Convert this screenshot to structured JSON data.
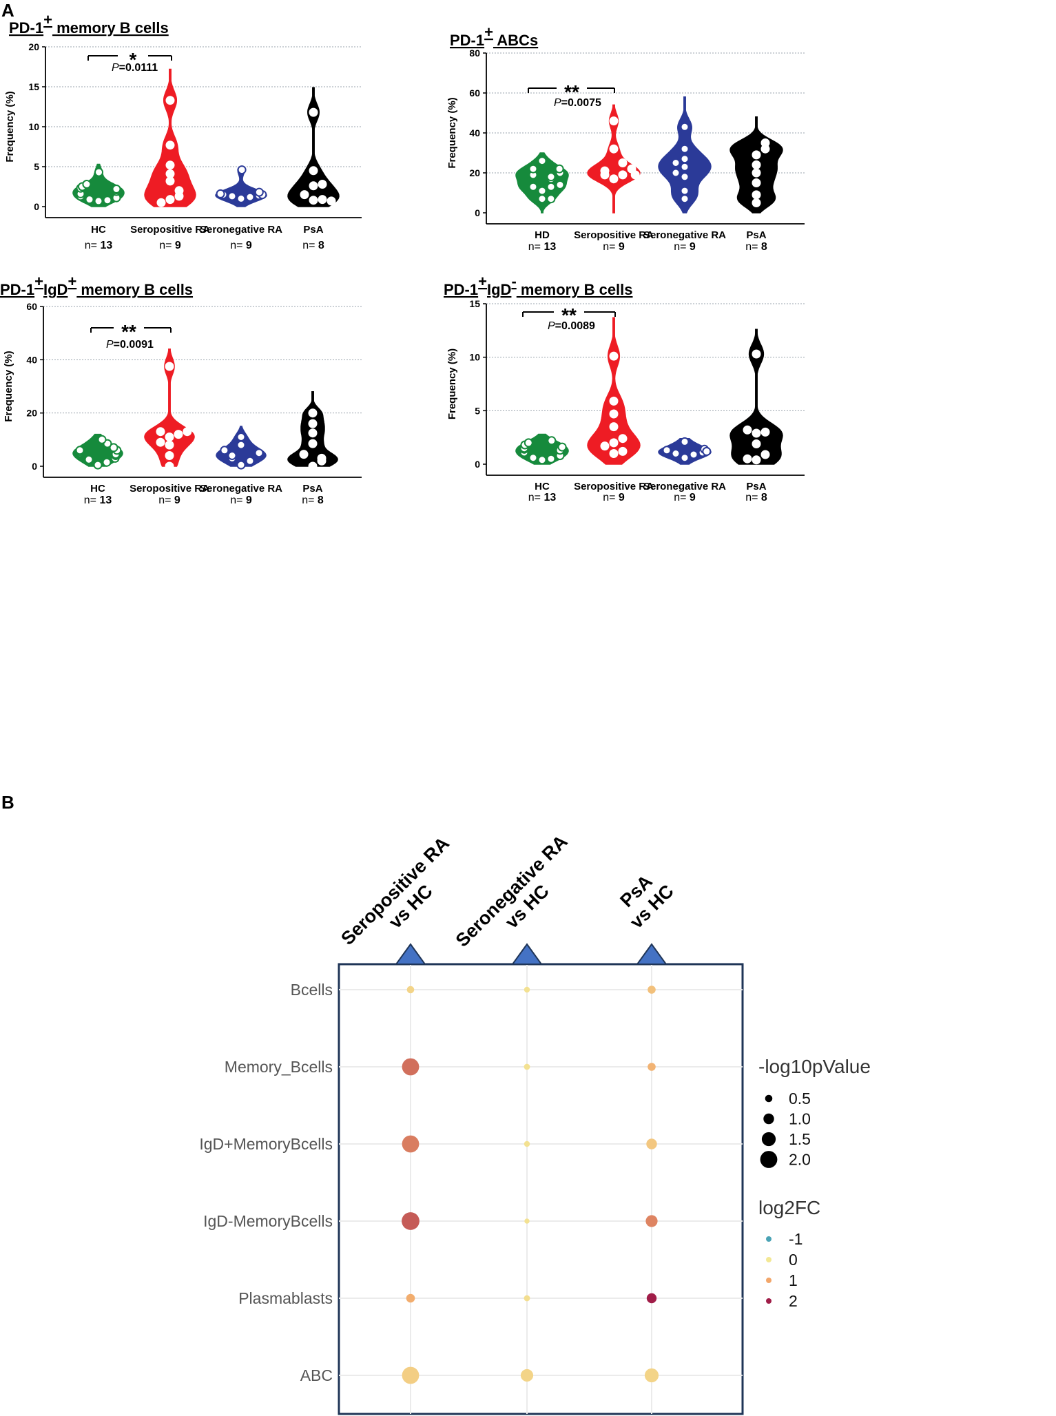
{
  "figure": {
    "panel_a_label": "A",
    "panel_b_label": "B"
  },
  "colors": {
    "HC": "#168a3c",
    "SeropositiveRA": "#ee1c24",
    "SeronegativeRA": "#2b3a98",
    "PsA": "#000000",
    "grid": "#9aa3ad",
    "dot_frame": "#1f3557",
    "triangle": "#4472c4"
  },
  "chart_data": [
    {
      "type": "violin",
      "title_pre": "PD-1",
      "title_sup": "+",
      "title_post": " memory B cells",
      "ylabel": "Frequency (%)",
      "ylim": [
        0,
        20
      ],
      "yticks": [
        "0",
        "5",
        "10",
        "15",
        "20"
      ],
      "groups": [
        {
          "label": "HC",
          "n_label": "n=",
          "n": "13",
          "key": "HC",
          "max": 5.3,
          "values": [
            0.7,
            0.8,
            0.9,
            1.1,
            1.3,
            1.6,
            1.9,
            2.1,
            2.2,
            2.3,
            2.5,
            2.8,
            4.3
          ]
        },
        {
          "label": "Seropositive RA",
          "n_label": "n=",
          "n": "9",
          "key": "SeropositiveRA",
          "max": 17.2,
          "values": [
            0.9,
            1.3,
            2.0,
            3.2,
            4.1,
            5.2,
            7.7,
            13.3,
            0.5
          ]
        },
        {
          "label": "Seronegative RA",
          "n_label": "n=",
          "n": "9",
          "key": "SeronegativeRA",
          "max": 4.7,
          "values": [
            1.0,
            1.2,
            1.3,
            1.4,
            1.5,
            1.5,
            1.6,
            4.6,
            1.8
          ]
        },
        {
          "label": "PsA",
          "n_label": "n=",
          "n": "8",
          "key": "PsA",
          "max": 14.9,
          "values": [
            0.8,
            0.9,
            1.5,
            2.6,
            2.8,
            4.5,
            11.8,
            0.7
          ]
        }
      ],
      "significance": [
        {
          "from": 0,
          "to": 1,
          "stars": "*",
          "p_label": "P",
          "p_value": "=0.0111"
        }
      ]
    },
    {
      "type": "violin",
      "title_pre": "PD-1",
      "title_sup": "+",
      "title_post": " ABCs",
      "ylabel": "Frequency (%)",
      "ylim": [
        0,
        80
      ],
      "yticks": [
        "0",
        "20",
        "40",
        "60",
        "80"
      ],
      "groups": [
        {
          "label": "HD",
          "n_label": "n=",
          "n": "13",
          "key": "HC",
          "max": 30,
          "values": [
            7,
            7,
            11,
            13,
            13,
            14,
            17,
            18,
            19,
            20,
            22,
            22,
            26
          ]
        },
        {
          "label": "Seropositive RA",
          "n_label": "n=",
          "n": "9",
          "key": "SeropositiveRA",
          "max": 54,
          "values": [
            17,
            19,
            19,
            21,
            22,
            25,
            32,
            46,
            19
          ]
        },
        {
          "label": "Seronegative RA",
          "n_label": "n=",
          "n": "9",
          "key": "SeronegativeRA",
          "max": 58,
          "values": [
            7,
            11,
            18,
            23,
            27,
            32,
            43,
            20,
            25
          ]
        },
        {
          "label": "PsA",
          "n_label": "n=",
          "n": "8",
          "key": "PsA",
          "max": 48,
          "values": [
            5,
            9,
            15,
            20,
            24,
            29,
            32,
            35
          ]
        }
      ],
      "significance": [
        {
          "from": 0,
          "to": 1,
          "stars": "**",
          "p_label": "P",
          "p_value": "=0.0075"
        }
      ]
    },
    {
      "type": "violin",
      "title_pre": "PD-1",
      "title_sup": "+",
      "title_mid": "IgD",
      "title_sup2": "+",
      "title_post": " memory B cells",
      "ylabel": "Frequency (%)",
      "ylim": [
        0,
        60
      ],
      "yticks": [
        "0",
        "20",
        "40",
        "60"
      ],
      "groups": [
        {
          "label": "HC",
          "n_label": "n=",
          "n": "13",
          "key": "HC",
          "max": 12,
          "values": [
            0.5,
            1.5,
            2.5,
            3,
            4,
            4.5,
            5,
            5.5,
            6,
            6,
            7,
            8.5,
            10
          ]
        },
        {
          "label": "Seropositive RA",
          "n_label": "n=",
          "n": "9",
          "key": "SeropositiveRA",
          "max": 44,
          "values": [
            0,
            4,
            8,
            11,
            12,
            13,
            13,
            37.5,
            9
          ]
        },
        {
          "label": "Seronegative RA",
          "n_label": "n=",
          "n": "9",
          "key": "SeronegativeRA",
          "max": 15,
          "values": [
            0.5,
            2,
            3,
            4,
            4.5,
            5,
            8,
            11,
            6
          ]
        },
        {
          "label": "PsA",
          "n_label": "n=",
          "n": "8",
          "key": "PsA",
          "max": 28,
          "values": [
            0,
            2,
            3,
            4.5,
            8.5,
            12.5,
            16,
            20
          ]
        }
      ],
      "significance": [
        {
          "from": 0,
          "to": 1,
          "stars": "**",
          "p_label": "P",
          "p_value": "=0.0091"
        }
      ]
    },
    {
      "type": "violin",
      "title_pre": "PD-1",
      "title_sup": "+",
      "title_mid": "IgD",
      "title_sup2": "-",
      "title_post": " memory B cells",
      "ylabel": "Frequency (%)",
      "ylim": [
        0,
        15
      ],
      "yticks": [
        "0",
        "5",
        "10",
        "15"
      ],
      "groups": [
        {
          "label": "HC",
          "n_label": "n=",
          "n": "13",
          "key": "HC",
          "max": 2.8,
          "values": [
            0.4,
            0.5,
            0.6,
            0.8,
            1.0,
            1.1,
            1.3,
            1.4,
            1.5,
            1.6,
            1.8,
            2.0,
            2.2
          ]
        },
        {
          "label": "Seropositive RA",
          "n_label": "n=",
          "n": "9",
          "key": "SeropositiveRA",
          "max": 13.7,
          "values": [
            1.0,
            1.2,
            2.0,
            2.4,
            3.5,
            4.7,
            5.9,
            10.1,
            1.7
          ]
        },
        {
          "label": "Seronegative RA",
          "n_label": "n=",
          "n": "9",
          "key": "SeronegativeRA",
          "max": 2.4,
          "values": [
            0.6,
            0.9,
            1.0,
            1.1,
            1.2,
            1.3,
            1.4,
            2.1,
            1.2
          ]
        },
        {
          "label": "PsA",
          "n_label": "n=",
          "n": "8",
          "key": "PsA",
          "max": 12.6,
          "values": [
            0.4,
            0.9,
            1.9,
            2.9,
            3.0,
            3.2,
            10.3,
            0.5
          ]
        }
      ],
      "significance": [
        {
          "from": 0,
          "to": 1,
          "stars": "**",
          "p_label": "P",
          "p_value": "=0.0089"
        }
      ]
    },
    {
      "type": "dotplot",
      "columns": [
        {
          "line1": "Seropositive RA",
          "line2": "vs HC"
        },
        {
          "line1": "Seronegative RA",
          "line2": "vs HC"
        },
        {
          "line1": "PsA",
          "line2": "vs HC"
        }
      ],
      "rows": [
        "Bcells",
        "Memory_Bcells",
        "IgD+MemoryBcells",
        "IgD-MemoryBcells",
        "Plasmablasts",
        "ABC"
      ],
      "points": [
        {
          "row": 0,
          "col": 0,
          "neglog10p": 0.5,
          "log2fc": 0.3
        },
        {
          "row": 0,
          "col": 1,
          "neglog10p": 0.25,
          "log2fc": 0.1
        },
        {
          "row": 0,
          "col": 2,
          "neglog10p": 0.6,
          "log2fc": 0.6
        },
        {
          "row": 1,
          "col": 0,
          "neglog10p": 2.0,
          "log2fc": 1.4
        },
        {
          "row": 1,
          "col": 1,
          "neglog10p": 0.3,
          "log2fc": 0.1
        },
        {
          "row": 1,
          "col": 2,
          "neglog10p": 0.6,
          "log2fc": 0.8
        },
        {
          "row": 2,
          "col": 0,
          "neglog10p": 2.0,
          "log2fc": 1.3
        },
        {
          "row": 2,
          "col": 1,
          "neglog10p": 0.25,
          "log2fc": 0.1
        },
        {
          "row": 2,
          "col": 2,
          "neglog10p": 1.0,
          "log2fc": 0.5
        },
        {
          "row": 3,
          "col": 0,
          "neglog10p": 2.1,
          "log2fc": 1.55
        },
        {
          "row": 3,
          "col": 1,
          "neglog10p": 0.15,
          "log2fc": 0.1
        },
        {
          "row": 3,
          "col": 2,
          "neglog10p": 1.2,
          "log2fc": 1.25
        },
        {
          "row": 4,
          "col": 0,
          "neglog10p": 0.7,
          "log2fc": 0.9
        },
        {
          "row": 4,
          "col": 1,
          "neglog10p": 0.3,
          "log2fc": 0.15
        },
        {
          "row": 4,
          "col": 2,
          "neglog10p": 0.9,
          "log2fc": 2.0
        },
        {
          "row": 5,
          "col": 0,
          "neglog10p": 2.0,
          "log2fc": 0.4
        },
        {
          "row": 5,
          "col": 1,
          "neglog10p": 1.3,
          "log2fc": 0.3
        },
        {
          "row": 5,
          "col": 2,
          "neglog10p": 1.5,
          "log2fc": 0.3
        }
      ],
      "size_legend": {
        "title": "-log10pValue",
        "values": [
          0.5,
          1.0,
          1.5,
          2.0
        ],
        "labels": [
          "0.5",
          "1.0",
          "1.5",
          "2.0"
        ]
      },
      "color_legend": {
        "title": "log2FC",
        "values": [
          -1,
          0,
          1,
          2
        ],
        "labels": [
          "-1",
          "0",
          "1",
          "2"
        ],
        "colors": [
          "#4aa3b5",
          "#f3e895",
          "#f2a66a",
          "#a01d48"
        ]
      }
    }
  ]
}
